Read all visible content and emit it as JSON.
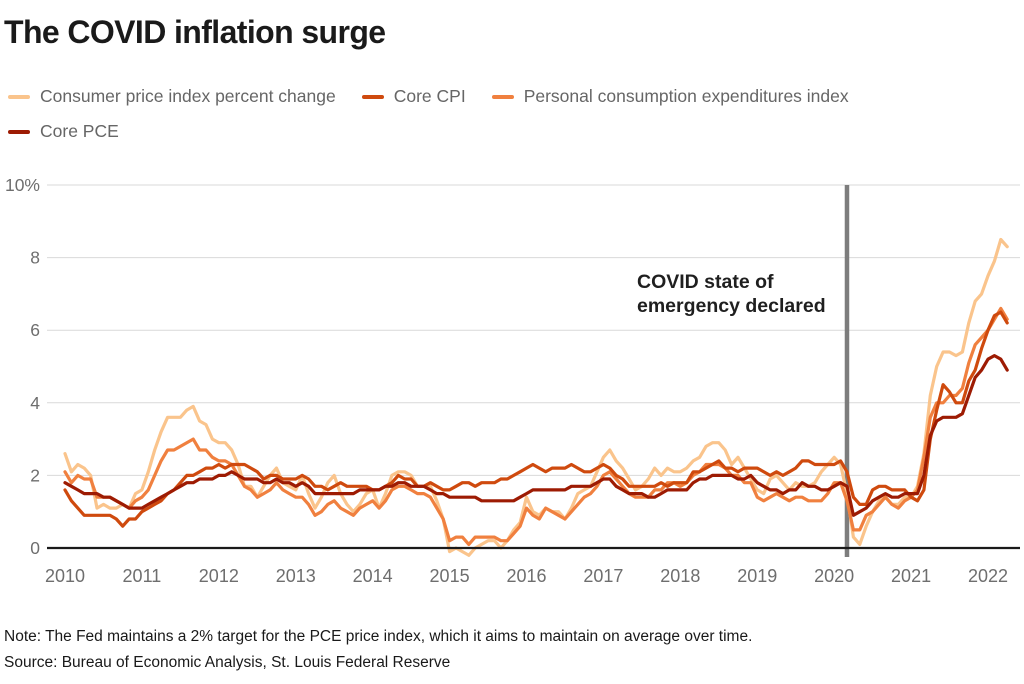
{
  "title": "The COVID inflation surge",
  "legend": [
    {
      "label": "Consumer price index percent change",
      "color": "#FAC48C"
    },
    {
      "label": "Core CPI",
      "color": "#CF4A0E"
    },
    {
      "label": "Personal consumption expenditures index",
      "color": "#F0803F"
    },
    {
      "label": "Core PCE",
      "color": "#9D1B03"
    }
  ],
  "annotation": "COVID state of emergency declared",
  "note": "Note: The Fed maintains a 2% target for the PCE price index, which it aims to maintain on average over time.",
  "source": "Source: Bureau of Economic Analysis, St. Louis Federal Reserve",
  "colors": {
    "grid": "#D9D9D9",
    "zero_axis": "#1A1A1A",
    "event_line": "#7D7D7D",
    "tick_label": "#6E6E6E"
  },
  "chart_data": {
    "type": "line",
    "frequency": "monthly",
    "x_start": {
      "year": 2010,
      "month": 1
    },
    "x_end": {
      "year": 2022,
      "month": 4
    },
    "x_tick_labels": [
      "2010",
      "2011",
      "2012",
      "2013",
      "2014",
      "2015",
      "2016",
      "2017",
      "2018",
      "2019",
      "2020",
      "2021",
      "2022"
    ],
    "y_ticks": [
      0,
      2,
      4,
      6,
      8,
      10
    ],
    "y_tick_labels": [
      "0",
      "2",
      "4",
      "6",
      "8",
      "10%"
    ],
    "ylim": [
      -0.5,
      10
    ],
    "grid": true,
    "legend_position": "top",
    "event_line": {
      "date": "2020-03",
      "label": "COVID state of emergency declared"
    },
    "series": [
      {
        "id": "cpi",
        "name": "Consumer price index percent change",
        "color": "#FAC48C",
        "values": [
          2.6,
          2.1,
          2.3,
          2.2,
          2.0,
          1.1,
          1.2,
          1.1,
          1.1,
          1.2,
          1.1,
          1.5,
          1.6,
          2.1,
          2.7,
          3.2,
          3.6,
          3.6,
          3.6,
          3.8,
          3.9,
          3.5,
          3.4,
          3.0,
          2.9,
          2.9,
          2.7,
          2.3,
          1.7,
          1.7,
          1.4,
          1.7,
          2.0,
          2.2,
          1.8,
          1.7,
          1.6,
          2.0,
          1.5,
          1.1,
          1.4,
          1.8,
          2.0,
          1.5,
          1.2,
          1.0,
          1.2,
          1.5,
          1.6,
          1.1,
          1.5,
          2.0,
          2.1,
          2.1,
          2.0,
          1.7,
          1.7,
          1.7,
          1.3,
          0.8,
          -0.1,
          0.0,
          -0.1,
          -0.2,
          0.0,
          0.1,
          0.2,
          0.2,
          0.0,
          0.2,
          0.5,
          0.7,
          1.4,
          1.0,
          0.9,
          1.1,
          1.0,
          1.0,
          0.8,
          1.1,
          1.5,
          1.6,
          1.7,
          2.1,
          2.5,
          2.7,
          2.4,
          2.2,
          1.9,
          1.6,
          1.7,
          1.9,
          2.2,
          2.0,
          2.2,
          2.1,
          2.1,
          2.2,
          2.4,
          2.5,
          2.8,
          2.9,
          2.9,
          2.7,
          2.3,
          2.5,
          2.2,
          1.9,
          1.6,
          1.5,
          1.9,
          2.0,
          1.8,
          1.6,
          1.8,
          1.7,
          1.7,
          1.8,
          2.1,
          2.3,
          2.5,
          2.3,
          1.5,
          0.3,
          0.1,
          0.6,
          1.0,
          1.3,
          1.4,
          1.2,
          1.2,
          1.4,
          1.4,
          1.7,
          2.6,
          4.2,
          5.0,
          5.4,
          5.4,
          5.3,
          5.4,
          6.2,
          6.8,
          7.0,
          7.5,
          7.9,
          8.5,
          8.3
        ]
      },
      {
        "id": "pce",
        "name": "Personal consumption expenditures index",
        "color": "#F0803F",
        "values": [
          2.1,
          1.8,
          2.0,
          1.9,
          1.9,
          1.4,
          1.4,
          1.4,
          1.3,
          1.2,
          1.1,
          1.3,
          1.4,
          1.6,
          2.0,
          2.4,
          2.7,
          2.7,
          2.8,
          2.9,
          3.0,
          2.7,
          2.7,
          2.5,
          2.4,
          2.4,
          2.3,
          2.0,
          1.7,
          1.6,
          1.4,
          1.5,
          1.6,
          1.8,
          1.6,
          1.5,
          1.4,
          1.4,
          1.2,
          0.9,
          1.0,
          1.2,
          1.3,
          1.1,
          1.0,
          0.9,
          1.1,
          1.2,
          1.3,
          1.1,
          1.3,
          1.6,
          1.7,
          1.7,
          1.6,
          1.5,
          1.5,
          1.4,
          1.1,
          0.8,
          0.2,
          0.3,
          0.3,
          0.1,
          0.3,
          0.3,
          0.3,
          0.3,
          0.2,
          0.2,
          0.4,
          0.6,
          1.1,
          0.9,
          0.8,
          1.1,
          1.0,
          0.9,
          0.8,
          1.0,
          1.2,
          1.4,
          1.5,
          1.7,
          2.0,
          2.1,
          1.9,
          1.7,
          1.5,
          1.4,
          1.4,
          1.4,
          1.6,
          1.6,
          1.8,
          1.8,
          1.7,
          1.8,
          2.0,
          2.1,
          2.3,
          2.3,
          2.3,
          2.2,
          2.0,
          2.0,
          1.8,
          1.8,
          1.4,
          1.3,
          1.4,
          1.5,
          1.4,
          1.3,
          1.4,
          1.4,
          1.3,
          1.3,
          1.3,
          1.5,
          1.8,
          1.8,
          1.3,
          0.5,
          0.5,
          0.9,
          1.0,
          1.2,
          1.4,
          1.2,
          1.1,
          1.3,
          1.4,
          1.6,
          2.5,
          3.6,
          4.0,
          4.0,
          4.2,
          4.2,
          4.4,
          5.1,
          5.6,
          5.8,
          6.0,
          6.3,
          6.6,
          6.3
        ]
      },
      {
        "id": "core-cpi",
        "name": "Core CPI",
        "color": "#CF4A0E",
        "values": [
          1.6,
          1.3,
          1.1,
          0.9,
          0.9,
          0.9,
          0.9,
          0.9,
          0.8,
          0.6,
          0.8,
          0.8,
          1.0,
          1.1,
          1.2,
          1.3,
          1.5,
          1.6,
          1.8,
          2.0,
          2.0,
          2.1,
          2.2,
          2.2,
          2.3,
          2.2,
          2.3,
          2.3,
          2.3,
          2.2,
          2.1,
          1.9,
          2.0,
          2.0,
          1.9,
          1.9,
          1.9,
          2.0,
          1.9,
          1.7,
          1.7,
          1.6,
          1.7,
          1.8,
          1.7,
          1.7,
          1.7,
          1.7,
          1.6,
          1.6,
          1.7,
          1.8,
          2.0,
          1.9,
          1.9,
          1.7,
          1.7,
          1.8,
          1.7,
          1.6,
          1.6,
          1.7,
          1.8,
          1.8,
          1.7,
          1.8,
          1.8,
          1.8,
          1.9,
          1.9,
          2.0,
          2.1,
          2.2,
          2.3,
          2.2,
          2.1,
          2.2,
          2.2,
          2.2,
          2.3,
          2.2,
          2.1,
          2.1,
          2.2,
          2.3,
          2.2,
          2.0,
          1.9,
          1.7,
          1.7,
          1.7,
          1.7,
          1.7,
          1.8,
          1.7,
          1.8,
          1.8,
          1.8,
          2.1,
          2.1,
          2.2,
          2.3,
          2.4,
          2.2,
          2.2,
          2.1,
          2.2,
          2.2,
          2.2,
          2.1,
          2.0,
          2.1,
          2.0,
          2.1,
          2.2,
          2.4,
          2.4,
          2.3,
          2.3,
          2.3,
          2.3,
          2.4,
          2.1,
          1.4,
          1.2,
          1.2,
          1.6,
          1.7,
          1.7,
          1.6,
          1.6,
          1.6,
          1.4,
          1.3,
          1.6,
          3.0,
          3.8,
          4.5,
          4.3,
          4.0,
          4.0,
          4.6,
          4.9,
          5.5,
          6.0,
          6.4,
          6.5,
          6.2
        ]
      },
      {
        "id": "core-pce",
        "name": "Core PCE",
        "color": "#9D1B03",
        "values": [
          1.8,
          1.7,
          1.6,
          1.5,
          1.5,
          1.5,
          1.4,
          1.4,
          1.3,
          1.2,
          1.1,
          1.1,
          1.1,
          1.2,
          1.3,
          1.4,
          1.5,
          1.6,
          1.7,
          1.8,
          1.8,
          1.9,
          1.9,
          1.9,
          2.0,
          2.0,
          2.1,
          2.0,
          1.9,
          1.9,
          1.9,
          1.8,
          1.8,
          1.9,
          1.8,
          1.8,
          1.7,
          1.8,
          1.7,
          1.5,
          1.5,
          1.5,
          1.5,
          1.5,
          1.5,
          1.5,
          1.6,
          1.6,
          1.6,
          1.6,
          1.7,
          1.7,
          1.8,
          1.8,
          1.7,
          1.7,
          1.7,
          1.6,
          1.5,
          1.5,
          1.4,
          1.4,
          1.4,
          1.4,
          1.4,
          1.3,
          1.3,
          1.3,
          1.3,
          1.3,
          1.3,
          1.4,
          1.5,
          1.6,
          1.6,
          1.6,
          1.6,
          1.6,
          1.6,
          1.7,
          1.7,
          1.7,
          1.7,
          1.8,
          1.9,
          1.9,
          1.7,
          1.6,
          1.5,
          1.5,
          1.5,
          1.4,
          1.4,
          1.5,
          1.6,
          1.6,
          1.6,
          1.6,
          1.8,
          1.9,
          1.9,
          2.0,
          2.0,
          2.0,
          2.0,
          1.9,
          1.9,
          2.0,
          1.8,
          1.7,
          1.6,
          1.6,
          1.5,
          1.6,
          1.6,
          1.8,
          1.7,
          1.7,
          1.6,
          1.6,
          1.7,
          1.8,
          1.7,
          0.9,
          1.0,
          1.1,
          1.3,
          1.4,
          1.5,
          1.4,
          1.4,
          1.5,
          1.5,
          1.5,
          2.0,
          3.1,
          3.5,
          3.6,
          3.6,
          3.6,
          3.7,
          4.2,
          4.7,
          4.9,
          5.2,
          5.3,
          5.2,
          4.9
        ]
      }
    ]
  }
}
